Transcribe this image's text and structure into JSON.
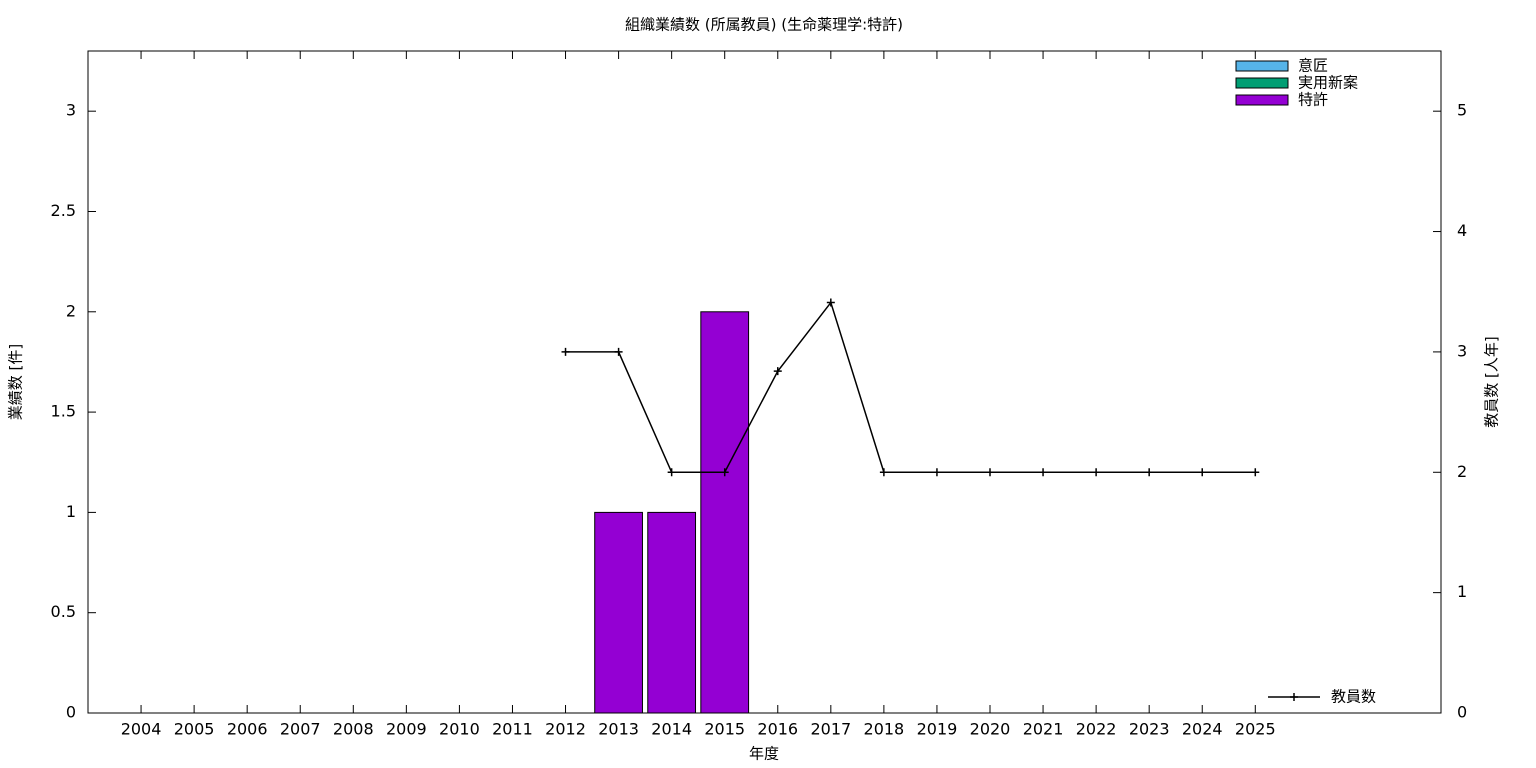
{
  "chart_data": {
    "type": "bar",
    "stacked": true,
    "title": "組織業績数 (所属教員) (生命薬理学:特許)",
    "x_label": "年度",
    "y_label": "業績数 [件]",
    "y2_label": "教員数 [人年]",
    "categories": [
      "2004",
      "2005",
      "2006",
      "2007",
      "2008",
      "2009",
      "2010",
      "2011",
      "2012",
      "2013",
      "2014",
      "2015",
      "2016",
      "2017",
      "2018",
      "2019",
      "2020",
      "2021",
      "2022",
      "2023",
      "2024",
      "2025"
    ],
    "series": [
      {
        "name": "意匠",
        "color": "#56b4e9",
        "values": [
          0,
          0,
          0,
          0,
          0,
          0,
          0,
          0,
          0,
          0,
          0,
          0,
          0,
          0,
          0,
          0,
          0,
          0,
          0,
          0,
          0,
          0
        ]
      },
      {
        "name": "実用新案",
        "color": "#009e73",
        "values": [
          0,
          0,
          0,
          0,
          0,
          0,
          0,
          0,
          0,
          0,
          0,
          0,
          0,
          0,
          0,
          0,
          0,
          0,
          0,
          0,
          0,
          0
        ]
      },
      {
        "name": "特許",
        "color": "#9400d3",
        "values": [
          0,
          0,
          0,
          0,
          0,
          0,
          0,
          0,
          0,
          1,
          1,
          2,
          0,
          0,
          0,
          0,
          0,
          0,
          0,
          0,
          0,
          0
        ]
      },
      {
        "name": "教員数",
        "type": "line",
        "axis": "y2",
        "color": "#000000",
        "values": [
          null,
          null,
          null,
          null,
          null,
          null,
          null,
          null,
          3,
          3,
          2,
          2,
          2.84,
          3.41,
          2,
          2,
          2,
          2,
          2,
          2,
          2,
          2
        ]
      }
    ],
    "ylim": [
      0,
      3.3
    ],
    "yticks": [
      0,
      0.5,
      1,
      1.5,
      2,
      2.5,
      3
    ],
    "y2lim": [
      0,
      5.5
    ],
    "y2ticks": [
      0,
      1,
      2,
      3,
      4,
      5
    ],
    "grid": false
  }
}
